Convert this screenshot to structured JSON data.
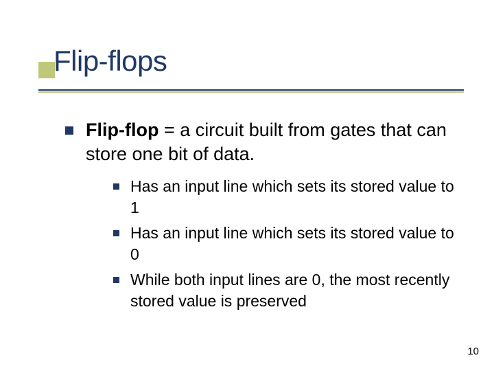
{
  "title": "Flip-flops",
  "colors": {
    "accent_dark": "#203864",
    "accent_light": "#bfc878",
    "text": "#000000",
    "background": "#ffffff"
  },
  "typography": {
    "title_fontsize": 42,
    "body_fontsize": 27,
    "sub_fontsize": 23,
    "pagenum_fontsize": 15,
    "font_family": "Verdana"
  },
  "main": {
    "term": "Flip-flop",
    "definition_rest": " = a circuit built from gates that can store one bit of data."
  },
  "sub_items": [
    "Has an input line which sets its stored value to 1",
    "Has an input line which sets its stored value to 0",
    "While both input lines are 0, the most recently stored value is preserved"
  ],
  "page_number": "10"
}
